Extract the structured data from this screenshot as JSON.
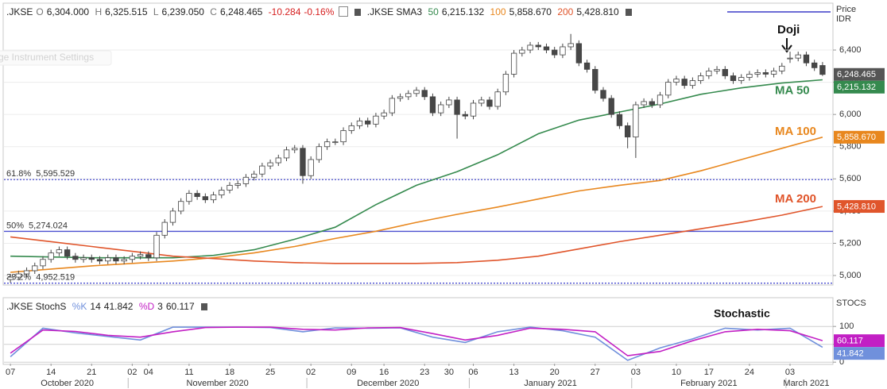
{
  "chart_data": [
    {
      "type": "candlestick",
      "header": {
        "symbol": ".JKSE",
        "o": "O",
        "open": "6,304.000",
        "h": "H",
        "high": "6,325.515",
        "l": "L",
        "low": "6,239.050",
        "c": "C",
        "close": "6,248.465",
        "change": "-10.284",
        "change_pct": "-0.16%",
        "study": ".JKSE SMA3",
        "p1": "50",
        "v1": "6,215.132",
        "p2": "100",
        "v2": "5,858.670",
        "p3": "200",
        "v3": "5,428.810"
      },
      "axis_label": [
        "Price",
        "IDR"
      ],
      "watermark": "ge Instrument Settings",
      "categories": [
        "07",
        null,
        null,
        null,
        null,
        "14",
        null,
        null,
        null,
        null,
        "21",
        null,
        null,
        null,
        null,
        "02",
        null,
        "04",
        null,
        null,
        null,
        null,
        "11",
        null,
        null,
        null,
        null,
        "18",
        null,
        null,
        null,
        null,
        "25",
        null,
        null,
        null,
        null,
        "02",
        null,
        null,
        null,
        null,
        "09",
        null,
        null,
        null,
        "16",
        null,
        null,
        null,
        null,
        "23",
        null,
        null,
        "30",
        null,
        null,
        "06",
        null,
        null,
        null,
        null,
        "13",
        null,
        null,
        null,
        null,
        "20",
        null,
        null,
        null,
        null,
        "27",
        null,
        null,
        null,
        null,
        "03",
        null,
        null,
        null,
        null,
        "10",
        null,
        null,
        null,
        "17",
        null,
        null,
        null,
        null,
        "24",
        null,
        null,
        null,
        null,
        "03",
        null,
        null,
        null,
        null
      ],
      "months": [
        "October 2020",
        "November 2020",
        "December 2020",
        "January 2021",
        "February 2021",
        "March 2021"
      ],
      "open": [
        4975,
        4990,
        5010,
        5030,
        5060,
        5100,
        5140,
        5160,
        5120,
        5100,
        5110,
        5100,
        5090,
        5110,
        5090,
        5100,
        5120,
        5130,
        5110,
        5250,
        5330,
        5400,
        5460,
        5510,
        5490,
        5470,
        5500,
        5530,
        5560,
        5570,
        5610,
        5630,
        5680,
        5700,
        5730,
        5780,
        5790,
        5620,
        5720,
        5800,
        5830,
        5830,
        5900,
        5930,
        5960,
        5940,
        5990,
        6010,
        6100,
        6110,
        6130,
        6150,
        6110,
        6010,
        6060,
        6090,
        6000,
        5990,
        6070,
        6090,
        6050,
        6140,
        6250,
        6380,
        6400,
        6430,
        6420,
        6400,
        6370,
        6420,
        6440,
        6320,
        6280,
        6150,
        6100,
        6000,
        5930,
        5860,
        6060,
        6080,
        6060,
        6120,
        6200,
        6220,
        6180,
        6210,
        6240,
        6270,
        6280,
        6240,
        6210,
        6230,
        6250,
        6260,
        6250,
        6270,
        6348,
        6350,
        6370,
        6320,
        6304
      ],
      "high": [
        5010,
        5030,
        5050,
        5080,
        5120,
        5160,
        5180,
        5180,
        5140,
        5130,
        5130,
        5120,
        5130,
        5130,
        5120,
        5140,
        5150,
        5150,
        5270,
        5350,
        5420,
        5480,
        5530,
        5530,
        5510,
        5520,
        5550,
        5580,
        5590,
        5630,
        5650,
        5700,
        5720,
        5750,
        5800,
        5810,
        5810,
        5740,
        5820,
        5850,
        5850,
        5920,
        5950,
        5980,
        5980,
        6010,
        6030,
        6120,
        6130,
        6150,
        6170,
        6170,
        6130,
        6080,
        6110,
        6110,
        6020,
        6090,
        6110,
        6110,
        6160,
        6270,
        6400,
        6420,
        6450,
        6450,
        6440,
        6420,
        6440,
        6500,
        6460,
        6340,
        6300,
        6170,
        6120,
        6020,
        5950,
        6080,
        6100,
        6100,
        6140,
        6220,
        6240,
        6240,
        6230,
        6260,
        6290,
        6300,
        6300,
        6260,
        6250,
        6270,
        6280,
        6280,
        6290,
        6320,
        6390,
        6390,
        6390,
        6340,
        6325.515
      ],
      "low": [
        4955,
        4970,
        4990,
        5010,
        5040,
        5080,
        5120,
        5100,
        5080,
        5080,
        5080,
        5070,
        5070,
        5070,
        5070,
        5080,
        5100,
        5090,
        5090,
        5230,
        5310,
        5380,
        5440,
        5470,
        5450,
        5450,
        5480,
        5510,
        5540,
        5550,
        5590,
        5610,
        5660,
        5680,
        5710,
        5760,
        5570,
        5600,
        5700,
        5780,
        5810,
        5810,
        5880,
        5910,
        5920,
        5920,
        5970,
        5990,
        6080,
        6090,
        6110,
        6090,
        5990,
        5990,
        6040,
        5850,
        5970,
        5970,
        6050,
        6030,
        6030,
        6120,
        6230,
        6360,
        6380,
        6400,
        6380,
        6350,
        6350,
        6400,
        6300,
        6260,
        6130,
        6080,
        5980,
        5910,
        5790,
        5730,
        6040,
        6040,
        6040,
        6100,
        6180,
        6160,
        6160,
        6190,
        6220,
        6250,
        6220,
        6190,
        6190,
        6210,
        6230,
        6230,
        6230,
        6250,
        6320,
        6330,
        6300,
        6270,
        6239.05
      ],
      "close": [
        4990,
        5010,
        5030,
        5060,
        5100,
        5140,
        5160,
        5120,
        5100,
        5110,
        5100,
        5090,
        5110,
        5090,
        5100,
        5120,
        5130,
        5110,
        5250,
        5330,
        5400,
        5460,
        5510,
        5490,
        5470,
        5500,
        5530,
        5560,
        5570,
        5610,
        5630,
        5680,
        5700,
        5730,
        5780,
        5790,
        5620,
        5720,
        5800,
        5830,
        5830,
        5900,
        5930,
        5960,
        5940,
        5990,
        6010,
        6100,
        6110,
        6130,
        6150,
        6110,
        6010,
        6060,
        6090,
        6000,
        5990,
        6070,
        6090,
        6050,
        6140,
        6250,
        6380,
        6400,
        6430,
        6420,
        6400,
        6370,
        6420,
        6440,
        6320,
        6280,
        6150,
        6100,
        6000,
        5930,
        5860,
        6060,
        6080,
        6060,
        6120,
        6200,
        6220,
        6180,
        6210,
        6240,
        6270,
        6280,
        6240,
        6210,
        6230,
        6250,
        6260,
        6250,
        6270,
        6300,
        6350,
        6370,
        6320,
        6290,
        6248.465
      ],
      "up_color": "#ffffff",
      "down_color": "#474747",
      "outline_color": "#444444",
      "ylim": [
        4946,
        6686
      ],
      "yticks": [
        {
          "value": 5000,
          "label": "5,000"
        },
        {
          "value": 5200,
          "label": "5,200"
        },
        {
          "value": 5400,
          "label": "5,400"
        },
        {
          "value": 5600,
          "label": "5,600"
        },
        {
          "value": 5800,
          "label": "5,800"
        },
        {
          "value": 6000,
          "label": "6,000"
        },
        {
          "value": 6200,
          "label": "6,200"
        },
        {
          "value": 6400,
          "label": "6,400"
        }
      ],
      "grid": true,
      "lines": [
        {
          "name": "MA 50",
          "color": "#358a4e",
          "x": [
            0,
            5,
            10,
            15,
            20,
            25,
            30,
            35,
            40,
            45,
            50,
            55,
            60,
            65,
            70,
            75,
            80,
            85,
            90,
            95,
            100
          ],
          "values": [
            5120,
            5115,
            5110,
            5110,
            5110,
            5125,
            5160,
            5225,
            5300,
            5440,
            5560,
            5645,
            5750,
            5880,
            5965,
            6015,
            6065,
            6125,
            6165,
            6195,
            6215.132
          ]
        },
        {
          "name": "MA 100",
          "color": "#e8871e",
          "x": [
            0,
            5,
            10,
            15,
            20,
            25,
            30,
            35,
            40,
            45,
            50,
            55,
            60,
            65,
            70,
            75,
            80,
            85,
            90,
            95,
            100
          ],
          "values": [
            5020,
            5040,
            5060,
            5075,
            5090,
            5110,
            5140,
            5180,
            5230,
            5275,
            5330,
            5380,
            5425,
            5475,
            5525,
            5560,
            5590,
            5650,
            5720,
            5790,
            5858.67
          ]
        },
        {
          "name": "MA 200",
          "color": "#e0552b",
          "x": [
            0,
            5,
            10,
            15,
            20,
            25,
            30,
            35,
            40,
            45,
            50,
            55,
            60,
            65,
            70,
            75,
            80,
            85,
            90,
            95,
            100
          ],
          "values": [
            5240,
            5210,
            5180,
            5150,
            5120,
            5105,
            5090,
            5080,
            5075,
            5075,
            5075,
            5080,
            5095,
            5120,
            5165,
            5210,
            5250,
            5290,
            5330,
            5375,
            5428.81
          ]
        }
      ],
      "fib_color": "#4b4fd0",
      "fib_levels": [
        {
          "name": "61.8%",
          "value": 5595.529,
          "label": "5,595.529",
          "style": "dotted"
        },
        {
          "name": "50%",
          "value": 5274.024,
          "label": "5,274.024",
          "style": "solid"
        },
        {
          "name": "38.2%",
          "value": 4952.519,
          "label": "4,952.519",
          "style": "dotted"
        }
      ],
      "price_tags": [
        {
          "value": 6248.465,
          "label": "6,248.465",
          "color": "#555555"
        },
        {
          "value": 6215.132,
          "label": "6,215.132",
          "color": "#358a4e"
        },
        {
          "value": 5858.67,
          "label": "5,858.670",
          "color": "#e8871e"
        },
        {
          "value": 5428.81,
          "label": "5,428.810",
          "color": "#e0552b"
        }
      ],
      "annotations": [
        {
          "text": "Doji"
        }
      ]
    },
    {
      "type": "line",
      "header": {
        "study": ".JKSE StochS",
        "k_period": "14",
        "k_value": "41.842",
        "d_period": "3",
        "d_value": "60.117"
      },
      "axis_label": "STOCS",
      "ylim": [
        -4,
        176
      ],
      "yticks": [
        0,
        50,
        100
      ],
      "grid": true,
      "series": [
        {
          "name": "%K",
          "color": "#7090dc",
          "x": [
            0,
            4,
            8,
            12,
            16,
            20,
            24,
            28,
            32,
            36,
            40,
            44,
            48,
            52,
            56,
            60,
            64,
            68,
            72,
            76,
            80,
            84,
            88,
            92,
            96,
            100
          ],
          "values": [
            15,
            95,
            82,
            72,
            62,
            98,
            98,
            98,
            97,
            85,
            96,
            95,
            96,
            70,
            55,
            85,
            98,
            88,
            70,
            5,
            40,
            65,
            95,
            90,
            95,
            41.842
          ]
        },
        {
          "name": "%D",
          "color": "#c21fc4",
          "x": [
            0,
            4,
            8,
            12,
            16,
            20,
            24,
            28,
            32,
            36,
            40,
            44,
            48,
            52,
            56,
            60,
            64,
            68,
            72,
            76,
            80,
            84,
            88,
            92,
            96,
            100
          ],
          "values": [
            25,
            90,
            86,
            75,
            70,
            85,
            97,
            98,
            98,
            92,
            90,
            96,
            97,
            80,
            62,
            75,
            95,
            92,
            85,
            18,
            30,
            60,
            85,
            92,
            88,
            60.117
          ]
        }
      ],
      "value_tags": [
        {
          "value": 60.117,
          "label": "60.117",
          "color": "#c21fc4"
        },
        {
          "value": 41.842,
          "label": "41.842",
          "color": "#7090dc"
        }
      ],
      "annotations": [
        {
          "text": "Stochastic"
        }
      ]
    }
  ]
}
